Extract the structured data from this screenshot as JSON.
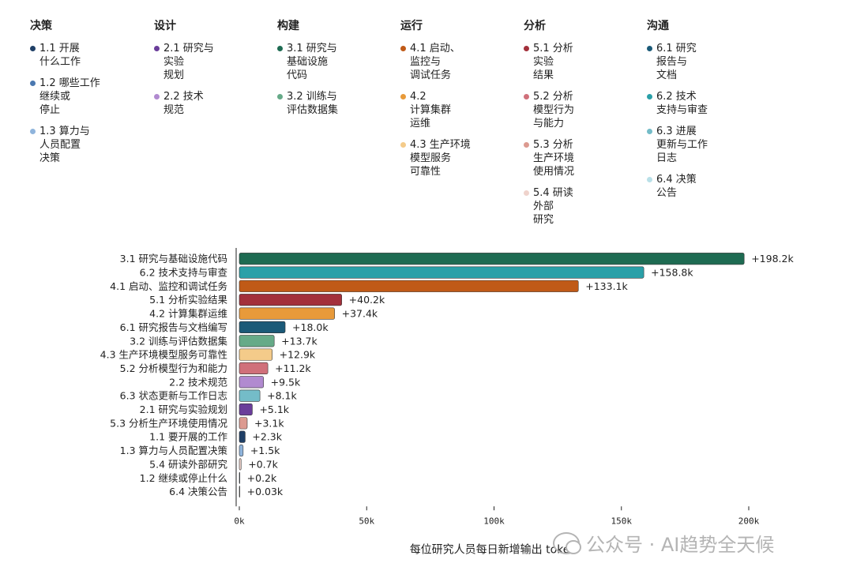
{
  "legend": [
    {
      "header": "决策",
      "items": [
        {
          "label": "1.1 开展\n什么工作",
          "color": "#1f3f66"
        },
        {
          "label": "1.2 哪些工作\n继续或\n停止",
          "color": "#4a78b0"
        },
        {
          "label": "1.3 算力与\n人员配置\n决策",
          "color": "#8fb4dc"
        }
      ]
    },
    {
      "header": "设计",
      "items": [
        {
          "label": "2.1 研究与\n实验\n规划",
          "color": "#6a3d9a"
        },
        {
          "label": "2.2 技术\n规范",
          "color": "#b18ad0"
        }
      ]
    },
    {
      "header": "构建",
      "items": [
        {
          "label": "3.1 研究与\n基础设施\n代码",
          "color": "#1e6b52"
        },
        {
          "label": "3.2 训练与\n评估数据集",
          "color": "#66aa88"
        }
      ]
    },
    {
      "header": "运行",
      "items": [
        {
          "label": "4.1 启动、\n监控与\n调试任务",
          "color": "#c05a17"
        },
        {
          "label": "4.2\n计算集群\n运维",
          "color": "#e89a3a"
        },
        {
          "label": "4.3 生产环境\n模型服务\n可靠性",
          "color": "#f4cb8a"
        }
      ]
    },
    {
      "header": "分析",
      "items": [
        {
          "label": "5.1 分析\n实验\n结果",
          "color": "#a3303b"
        },
        {
          "label": "5.2 分析\n模型行为\n与能力",
          "color": "#d0707a"
        },
        {
          "label": "5.3 分析\n生产环境\n使用情况",
          "color": "#dc9a90"
        },
        {
          "label": "5.4 研读\n外部\n研究",
          "color": "#efd3cc"
        }
      ]
    },
    {
      "header": "沟通",
      "items": [
        {
          "label": "6.1 研究\n报告与\n文档",
          "color": "#1b5a78"
        },
        {
          "label": "6.2 技术\n支持与审查",
          "color": "#2aa0a8"
        },
        {
          "label": "6.3 进展\n更新与工作\n日志",
          "color": "#74bcc8"
        },
        {
          "label": "6.4 决策\n公告",
          "color": "#b9e0e8"
        }
      ]
    }
  ],
  "chart_data": {
    "type": "bar",
    "orientation": "horizontal",
    "xlabel": "每位研究人员每日新增输出 token",
    "xlim": [
      0,
      200000
    ],
    "xticks": [
      0,
      50000,
      100000,
      150000,
      200000
    ],
    "xtick_labels": [
      "0k",
      "50k",
      "100k",
      "150k",
      "200k"
    ],
    "categories": [
      "3.1 研究与基础设施代码",
      "6.2 技术支持与审查",
      "4.1 启动、监控和调试任务",
      "5.1 分析实验结果",
      "4.2 计算集群运维",
      "6.1 研究报告与文档编写",
      "3.2 训练与评估数据集",
      "4.3 生产环境模型服务可靠性",
      "5.2 分析模型行为和能力",
      "2.2 技术规范",
      "6.3 状态更新与工作日志",
      "2.1 研究与实验规划",
      "5.3 分析生产环境使用情况",
      "1.1 要开展的工作",
      "1.3 算力与人员配置决策",
      "5.4 研读外部研究",
      "1.2 继续或停止什么",
      "6.4 决策公告"
    ],
    "values": [
      198200,
      158800,
      133100,
      40200,
      37400,
      18000,
      13700,
      12900,
      11200,
      9500,
      8100,
      5100,
      3100,
      2300,
      1500,
      700,
      200,
      30
    ],
    "value_labels": [
      "+198.2k",
      "+158.8k",
      "+133.1k",
      "+40.2k",
      "+37.4k",
      "+18.0k",
      "+13.7k",
      "+12.9k",
      "+11.2k",
      "+9.5k",
      "+8.1k",
      "+5.1k",
      "+3.1k",
      "+2.3k",
      "+1.5k",
      "+0.7k",
      "+0.2k",
      "+0.03k"
    ],
    "colors": [
      "#1e6b52",
      "#2aa0a8",
      "#c05a17",
      "#a3303b",
      "#e89a3a",
      "#1b5a78",
      "#66aa88",
      "#f4cb8a",
      "#d0707a",
      "#b18ad0",
      "#74bcc8",
      "#6a3d9a",
      "#dc9a90",
      "#1f3f66",
      "#8fb4dc",
      "#efd3cc",
      "#4a78b0",
      "#b9e0e8"
    ]
  },
  "watermark": "公众号 · AI趋势全天候"
}
